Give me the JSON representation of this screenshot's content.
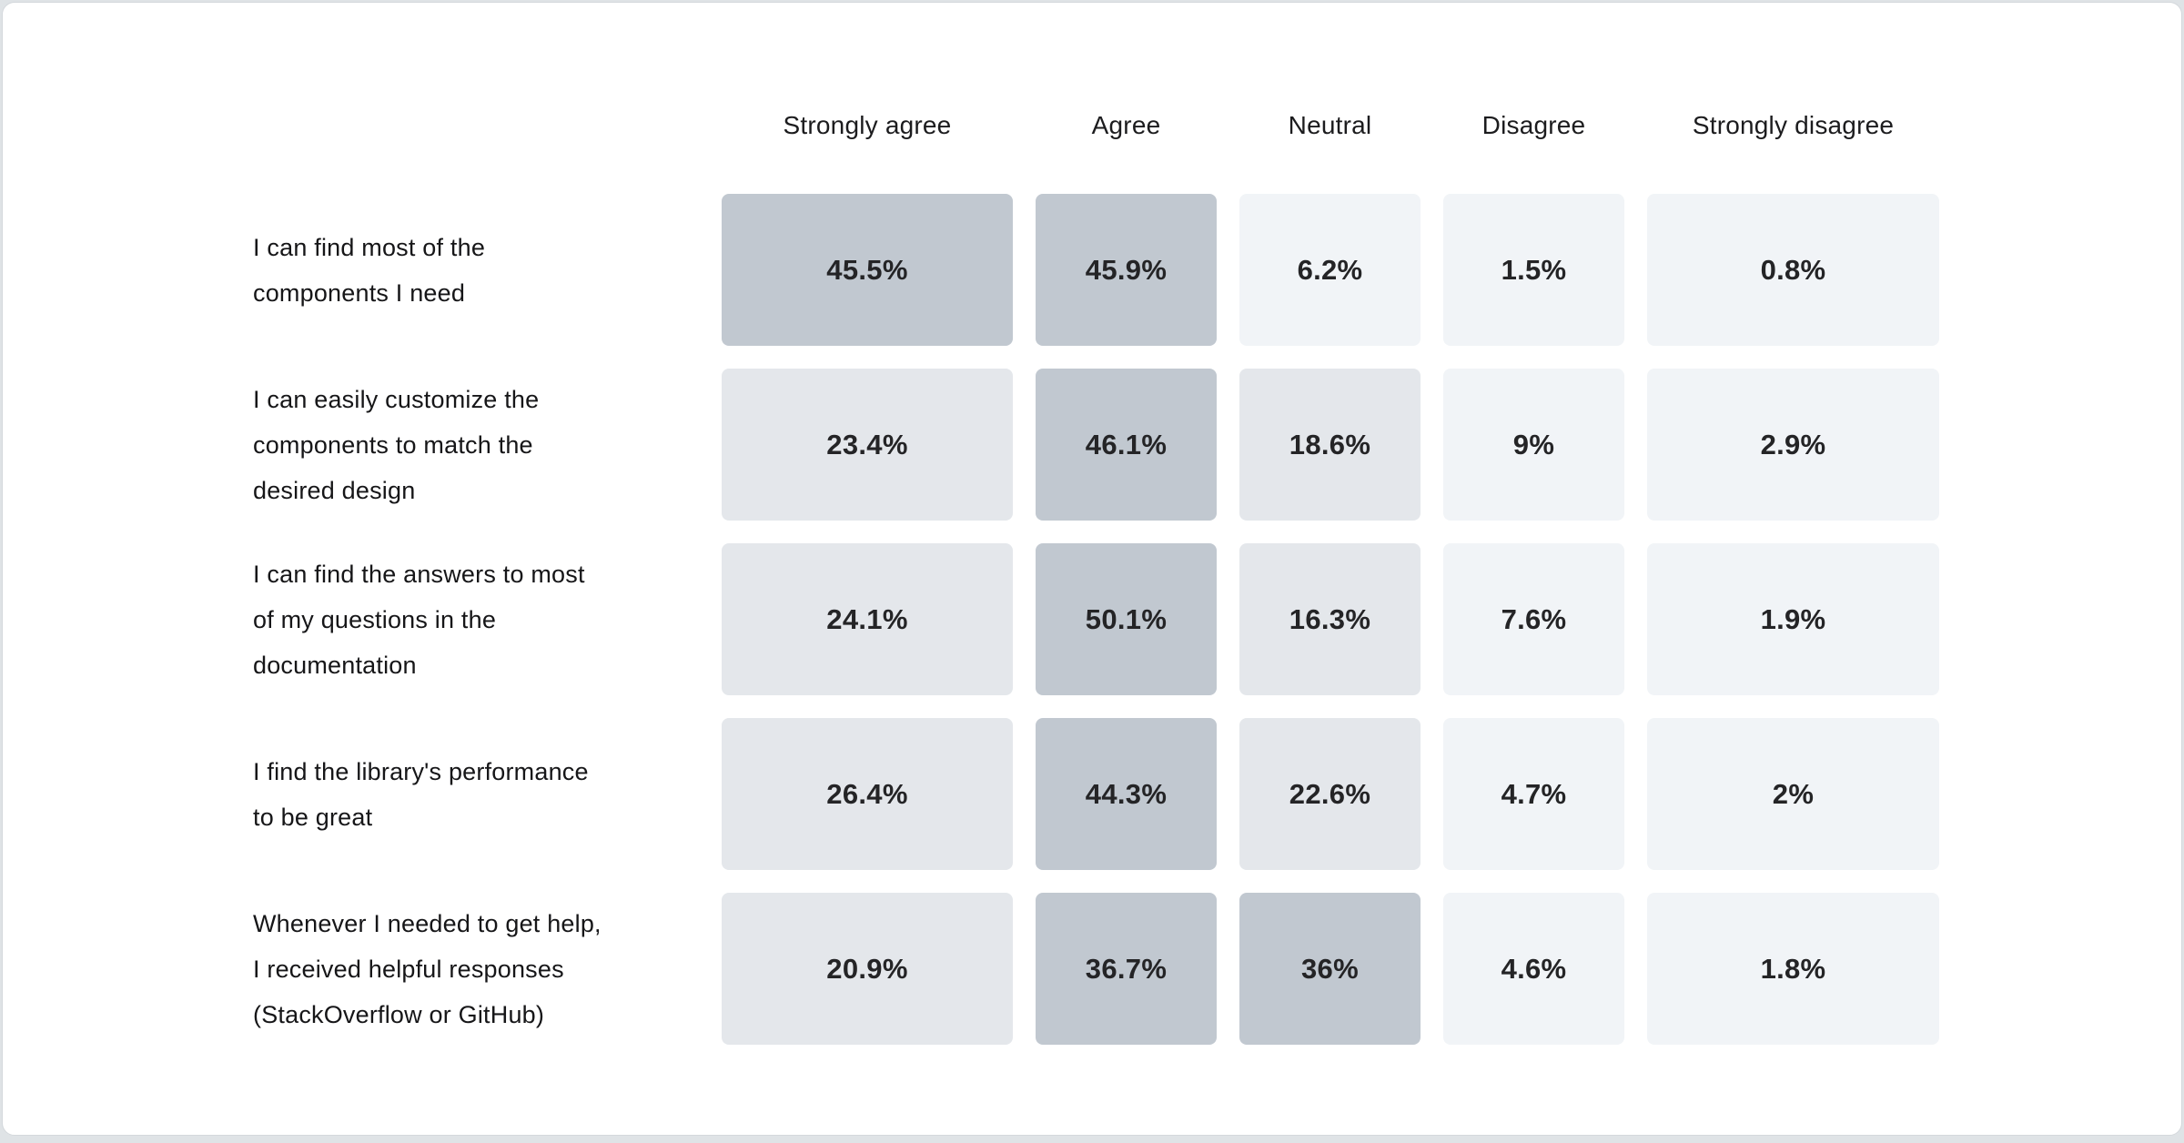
{
  "page": {
    "background_color": "#dfe3e6",
    "card_background": "#ffffff",
    "card_border_color": "#d4d8dc"
  },
  "chart_data": {
    "type": "heatmap",
    "title": "",
    "columns": [
      "Strongly agree",
      "Agree",
      "Neutral",
      "Disagree",
      "Strongly disagree"
    ],
    "rows": [
      {
        "label": "I can find most of the\ncomponents I need",
        "values": [
          45.5,
          45.9,
          6.2,
          1.5,
          0.8
        ],
        "display": [
          "45.5%",
          "45.9%",
          "6.2%",
          "1.5%",
          "0.8%"
        ]
      },
      {
        "label": "I can easily customize the\ncomponents to match the\ndesired design",
        "values": [
          23.4,
          46.1,
          18.6,
          9,
          2.9
        ],
        "display": [
          "23.4%",
          "46.1%",
          "18.6%",
          "9%",
          "2.9%"
        ]
      },
      {
        "label": "I can find the answers to most\nof my questions in the\ndocumentation",
        "values": [
          24.1,
          50.1,
          16.3,
          7.6,
          1.9
        ],
        "display": [
          "24.1%",
          "50.1%",
          "16.3%",
          "7.6%",
          "1.9%"
        ]
      },
      {
        "label": "I find the library's performance\nto be great",
        "values": [
          26.4,
          44.3,
          22.6,
          4.7,
          2
        ],
        "display": [
          "26.4%",
          "44.3%",
          "22.6%",
          "4.7%",
          "2%"
        ]
      },
      {
        "label": "Whenever I needed to get help,\nI received helpful responses\n(StackOverflow or GitHub)",
        "values": [
          20.9,
          36.7,
          36,
          4.6,
          1.8
        ],
        "display": [
          "20.9%",
          "36.7%",
          "36%",
          "4.6%",
          "1.8%"
        ]
      }
    ],
    "color_scale": {
      "bins": [
        {
          "min": 30,
          "color": "#c1c8d0"
        },
        {
          "min": 10,
          "color": "#e4e7eb"
        },
        {
          "min": 0,
          "color": "#f1f4f7"
        }
      ]
    },
    "value_text_color": "#242426",
    "label_text_color": "#161618",
    "legend": "none",
    "grid": false
  }
}
